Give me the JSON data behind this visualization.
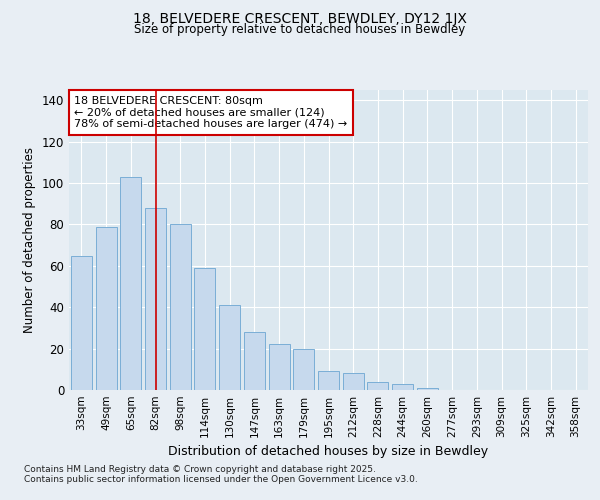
{
  "title1": "18, BELVEDERE CRESCENT, BEWDLEY, DY12 1JX",
  "title2": "Size of property relative to detached houses in Bewdley",
  "xlabel": "Distribution of detached houses by size in Bewdley",
  "ylabel": "Number of detached properties",
  "categories": [
    "33sqm",
    "49sqm",
    "65sqm",
    "82sqm",
    "98sqm",
    "114sqm",
    "130sqm",
    "147sqm",
    "163sqm",
    "179sqm",
    "195sqm",
    "212sqm",
    "228sqm",
    "244sqm",
    "260sqm",
    "277sqm",
    "293sqm",
    "309sqm",
    "325sqm",
    "342sqm",
    "358sqm"
  ],
  "values": [
    65,
    79,
    103,
    88,
    80,
    59,
    41,
    28,
    22,
    20,
    9,
    8,
    4,
    3,
    1,
    0,
    0,
    0,
    0,
    0,
    0
  ],
  "bar_color": "#c6d9ed",
  "bar_edge_color": "#7aaed6",
  "vline_x": 3,
  "vline_color": "#cc0000",
  "annotation_title": "18 BELVEDERE CRESCENT: 80sqm",
  "annotation_line1": "← 20% of detached houses are smaller (124)",
  "annotation_line2": "78% of semi-detached houses are larger (474) →",
  "annotation_box_color": "#cc0000",
  "ylim": [
    0,
    145
  ],
  "yticks": [
    0,
    20,
    40,
    60,
    80,
    100,
    120,
    140
  ],
  "footnote1": "Contains HM Land Registry data © Crown copyright and database right 2025.",
  "footnote2": "Contains public sector information licensed under the Open Government Licence v3.0.",
  "bg_color": "#e8eef4",
  "plot_bg_color": "#dce8f0",
  "grid_color": "#ffffff"
}
